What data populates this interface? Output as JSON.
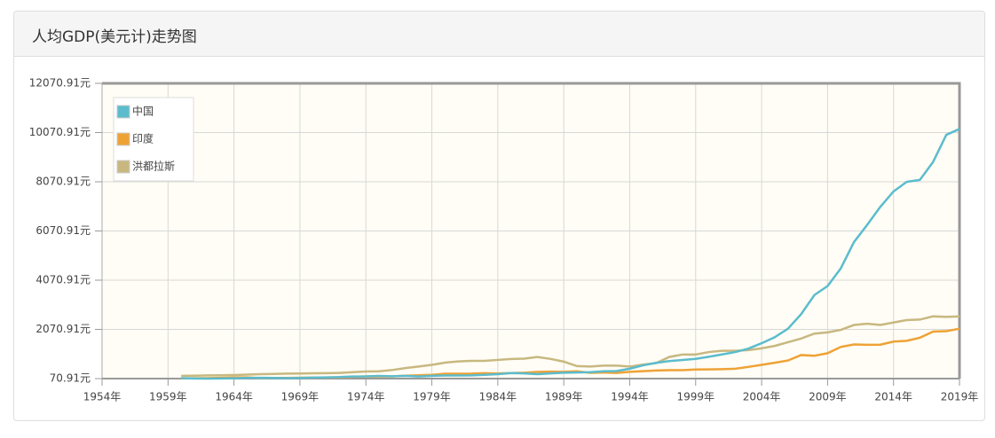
{
  "chart_data": {
    "type": "line",
    "title": "人均GDP(美元计)走势图",
    "x": [
      1960,
      1961,
      1962,
      1963,
      1964,
      1965,
      1966,
      1967,
      1968,
      1969,
      1970,
      1971,
      1972,
      1973,
      1974,
      1975,
      1976,
      1977,
      1978,
      1979,
      1980,
      1981,
      1982,
      1983,
      1984,
      1985,
      1986,
      1987,
      1988,
      1989,
      1990,
      1991,
      1992,
      1993,
      1994,
      1995,
      1996,
      1997,
      1998,
      1999,
      2000,
      2001,
      2002,
      2003,
      2004,
      2005,
      2006,
      2007,
      2008,
      2009,
      2010,
      2011,
      2012,
      2013,
      2014,
      2015,
      2016,
      2017,
      2018,
      2019
    ],
    "series": [
      {
        "name": "中国",
        "color": "#5bbccd",
        "values": [
          90,
          76,
          71,
          74,
          85,
          98,
          104,
          97,
          91,
          100,
          113,
          119,
          132,
          157,
          161,
          178,
          165,
          185,
          156,
          184,
          195,
          197,
          203,
          225,
          251,
          294,
          282,
          252,
          284,
          311,
          318,
          333,
          366,
          377,
          473,
          610,
          709,
          782,
          829,
          873,
          959,
          1053,
          1149,
          1289,
          1509,
          1753,
          2099,
          2694,
          3468,
          3832,
          4550,
          5618,
          6317,
          7051,
          7679,
          8067,
          8148,
          8879,
          9977,
          10217
        ]
      },
      {
        "name": "印度",
        "color": "#eea236",
        "values": [
          82,
          85,
          90,
          101,
          116,
          119,
          90,
          96,
          99,
          107,
          112,
          118,
          122,
          143,
          163,
          158,
          161,
          186,
          206,
          224,
          267,
          271,
          275,
          292,
          277,
          296,
          310,
          340,
          354,
          346,
          368,
          303,
          317,
          301,
          346,
          374,
          400,
          415,
          413,
          442,
          443,
          452,
          471,
          546,
          628,
          715,
          807,
          1028,
          999,
          1102,
          1358,
          1458,
          1444,
          1450,
          1574,
          1606,
          1733,
          1981,
          1997,
          2100
        ]
      },
      {
        "name": "洪都拉斯",
        "color": "#c8b880",
        "values": [
          185,
          190,
          200,
          205,
          215,
          235,
          250,
          260,
          275,
          280,
          285,
          290,
          300,
          330,
          360,
          370,
          420,
          500,
          560,
          630,
          720,
          770,
          790,
          790,
          830,
          870,
          880,
          950,
          870,
          760,
          580,
          560,
          600,
          600,
          560,
          640,
          700,
          950,
          1050,
          1050,
          1150,
          1200,
          1200,
          1230,
          1300,
          1400,
          1550,
          1700,
          1900,
          1950,
          2050,
          2250,
          2300,
          2250,
          2350,
          2450,
          2470,
          2600,
          2580,
          2600
        ]
      }
    ],
    "xlim": [
      1954,
      2019
    ],
    "xticks": [
      {
        "value": 1954,
        "label": "1954年"
      },
      {
        "value": 1959,
        "label": "1959年"
      },
      {
        "value": 1964,
        "label": "1964年"
      },
      {
        "value": 1969,
        "label": "1969年"
      },
      {
        "value": 1974,
        "label": "1974年"
      },
      {
        "value": 1979,
        "label": "1979年"
      },
      {
        "value": 1984,
        "label": "1984年"
      },
      {
        "value": 1989,
        "label": "1989年"
      },
      {
        "value": 1994,
        "label": "1994年"
      },
      {
        "value": 1999,
        "label": "1999年"
      },
      {
        "value": 2004,
        "label": "2004年"
      },
      {
        "value": 2009,
        "label": "2009年"
      },
      {
        "value": 2014,
        "label": "2014年"
      },
      {
        "value": 2019,
        "label": "2019年"
      }
    ],
    "ylim": [
      70.91,
      12070.91
    ],
    "yticks": [
      {
        "value": 70.91,
        "label": "70.91元"
      },
      {
        "value": 2070.91,
        "label": "2070.91元"
      },
      {
        "value": 4070.91,
        "label": "4070.91元"
      },
      {
        "value": 6070.91,
        "label": "6070.91元"
      },
      {
        "value": 8070.91,
        "label": "8070.91元"
      },
      {
        "value": 10070.91,
        "label": "10070.91元"
      },
      {
        "value": 12070.91,
        "label": "12070.91元"
      }
    ],
    "grid": true,
    "legend": "upper left"
  }
}
